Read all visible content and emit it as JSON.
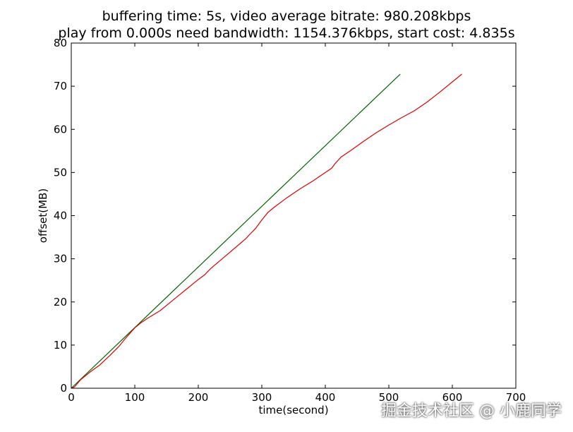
{
  "chart_data": {
    "type": "line",
    "title": "buffering time: 5s, video average bitrate: 980.208kbps",
    "subtitle": "play from 0.000s need bandwidth: 1154.376kbps, start cost: 4.835s",
    "xlabel": "time(second)",
    "ylabel": "offset(MB)",
    "xlim": [
      0,
      700
    ],
    "ylim": [
      0,
      80
    ],
    "xticks": [
      "0",
      "100",
      "200",
      "300",
      "400",
      "500",
      "600",
      "700"
    ],
    "yticks": [
      "0",
      "10",
      "20",
      "30",
      "40",
      "50",
      "60",
      "70",
      "80"
    ],
    "grid": false,
    "legend": "none",
    "series": [
      {
        "color": "#006400",
        "x": [
          0,
          518
        ],
        "y": [
          0,
          72.8
        ]
      },
      {
        "color": "#dd0000",
        "x": [
          0,
          5,
          15,
          30,
          45,
          60,
          75,
          85,
          100,
          110,
          120,
          140,
          160,
          180,
          200,
          210,
          220,
          240,
          260,
          275,
          280,
          290,
          300,
          310,
          320,
          340,
          360,
          380,
          400,
          410,
          415,
          425,
          440,
          460,
          480,
          500,
          520,
          540,
          560,
          580,
          600,
          615
        ],
        "y": [
          0,
          0.3,
          2,
          3.8,
          5.4,
          7.5,
          9.7,
          11.5,
          14,
          15.2,
          16.2,
          18,
          20.4,
          22.8,
          25.2,
          26.3,
          27.8,
          30.3,
          32.8,
          34.7,
          35.5,
          37,
          39,
          40.8,
          42,
          44.2,
          46.2,
          48,
          50,
          51,
          52,
          53.6,
          55.1,
          57.2,
          59.2,
          61,
          62.7,
          64.3,
          66.3,
          68.6,
          71,
          72.8
        ]
      }
    ]
  },
  "watermark": "掘金技术社区 @ 小鹿同学"
}
